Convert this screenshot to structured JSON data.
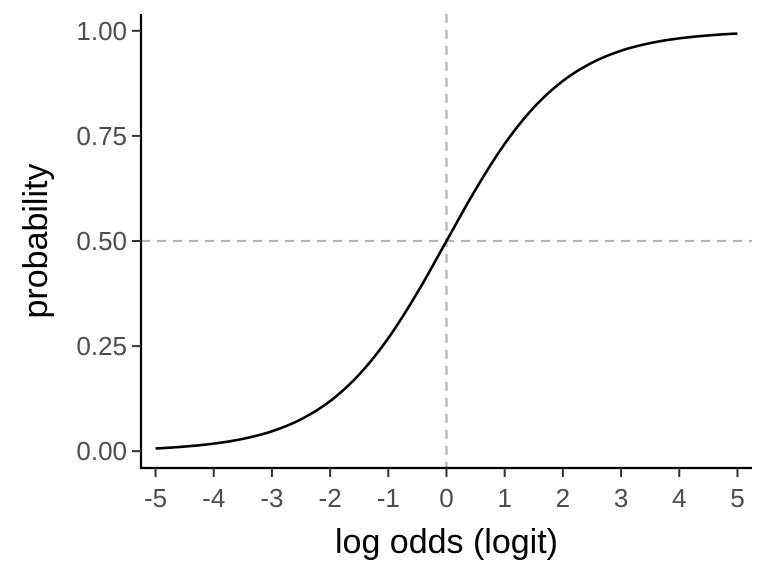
{
  "chart_data": {
    "type": "line",
    "title": "",
    "xlabel": "log odds (logit)",
    "ylabel": "probability",
    "xlim": [
      -5.25,
      5.25
    ],
    "ylim": [
      -0.04,
      1.04
    ],
    "x_ticks": [
      -5,
      -4,
      -3,
      -2,
      -1,
      0,
      1,
      2,
      3,
      4,
      5
    ],
    "x_tick_labels": [
      "-5",
      "-4",
      "-3",
      "-2",
      "-1",
      "0",
      "1",
      "2",
      "3",
      "4",
      "5"
    ],
    "y_ticks": [
      0,
      0.25,
      0.5,
      0.75,
      1
    ],
    "y_tick_labels": [
      "0.00",
      "0.25",
      "0.50",
      "0.75",
      "1.00"
    ],
    "grid": false,
    "legend": "none",
    "series": [
      {
        "color": "#000000",
        "x": [
          -5,
          -4.5,
          -4,
          -3.5,
          -3,
          -2.5,
          -2,
          -1.5,
          -1,
          -0.5,
          0,
          0.5,
          1,
          1.5,
          2,
          2.5,
          3,
          3.5,
          4,
          4.5,
          5
        ],
        "y": [
          0.0067,
          0.011,
          0.018,
          0.0293,
          0.0474,
          0.0759,
          0.1192,
          0.1824,
          0.2689,
          0.3775,
          0.5,
          0.6225,
          0.7311,
          0.8176,
          0.8808,
          0.9241,
          0.9526,
          0.9707,
          0.982,
          0.989,
          0.9933
        ]
      }
    ],
    "reference_lines": [
      {
        "orientation": "vertical",
        "value": 0,
        "style": "dashed",
        "color": "#b3b3b3"
      },
      {
        "orientation": "horizontal",
        "value": 0.5,
        "style": "dashed",
        "color": "#b3b3b3"
      }
    ]
  }
}
